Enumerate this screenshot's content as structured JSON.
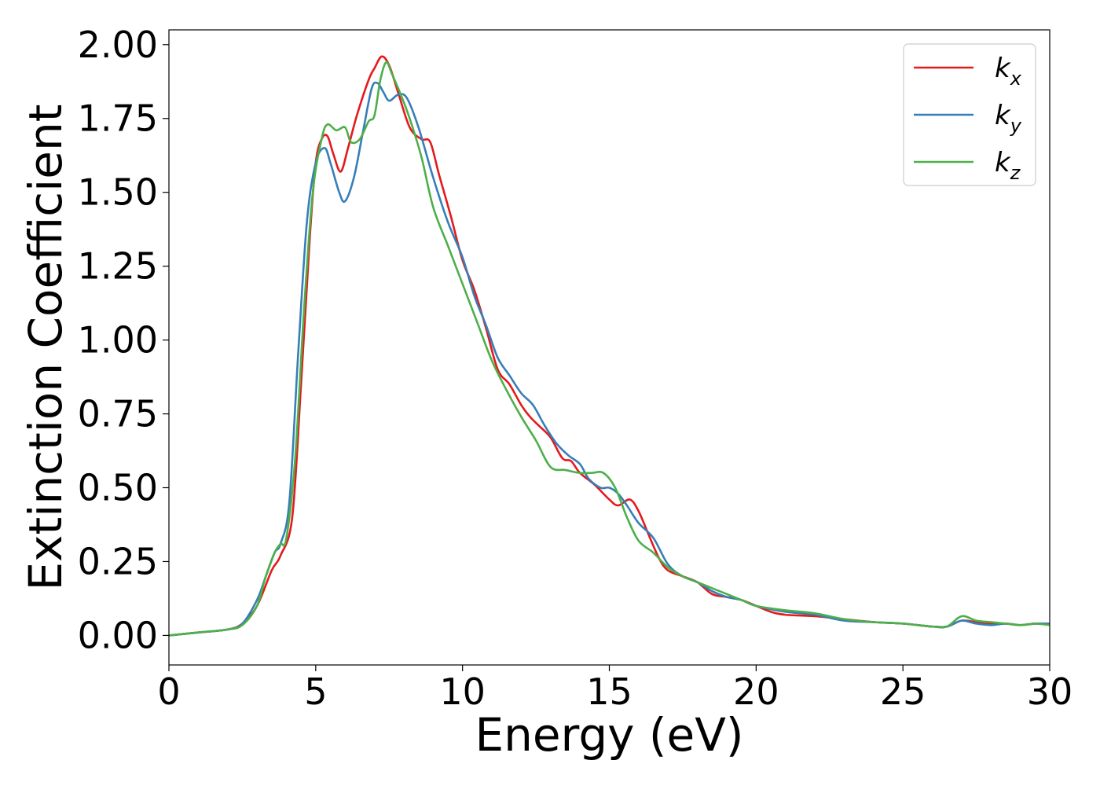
{
  "chart_data": {
    "type": "line",
    "title": "",
    "xlabel": "Energy (eV)",
    "ylabel": "Extinction Coefficient",
    "xlim": [
      0,
      30
    ],
    "ylim": [
      -0.1,
      2.05
    ],
    "xticks": [
      0,
      5,
      10,
      15,
      20,
      25,
      30
    ],
    "xtick_labels": [
      "0",
      "5",
      "10",
      "15",
      "20",
      "25",
      "30"
    ],
    "yticks": [
      0.0,
      0.25,
      0.5,
      0.75,
      1.0,
      1.25,
      1.5,
      1.75,
      2.0
    ],
    "ytick_labels": [
      "0.00",
      "0.25",
      "0.50",
      "0.75",
      "1.00",
      "1.25",
      "1.50",
      "1.75",
      "2.00"
    ],
    "grid": false,
    "legend_position": "top-right",
    "series": [
      {
        "name": "k_x",
        "label_main": "k",
        "label_sub": "x",
        "color": "#e41a1c",
        "x": [
          0,
          1,
          2,
          2.5,
          3,
          3.5,
          3.8,
          4.2,
          4.5,
          4.8,
          5.0,
          5.2,
          5.4,
          5.6,
          5.85,
          6.1,
          6.4,
          6.8,
          7.0,
          7.25,
          7.5,
          7.8,
          8.2,
          8.6,
          8.9,
          9.2,
          9.6,
          10.0,
          10.4,
          10.8,
          11.2,
          11.6,
          12.0,
          12.3,
          12.6,
          13.0,
          13.4,
          13.7,
          14.0,
          14.5,
          15.0,
          15.3,
          15.7,
          16.0,
          16.3,
          16.7,
          17.0,
          17.5,
          18.0,
          18.5,
          19.0,
          19.5,
          20.0,
          20.5,
          21.0,
          22.0,
          23.0,
          24.0,
          25.0,
          26.0,
          26.5,
          27.0,
          27.5,
          28.0,
          28.5,
          29.0,
          29.5,
          30.0
        ],
        "y": [
          0.0,
          0.01,
          0.02,
          0.04,
          0.1,
          0.22,
          0.27,
          0.4,
          0.85,
          1.35,
          1.6,
          1.68,
          1.69,
          1.63,
          1.57,
          1.65,
          1.76,
          1.88,
          1.92,
          1.96,
          1.93,
          1.84,
          1.72,
          1.68,
          1.67,
          1.56,
          1.42,
          1.27,
          1.17,
          1.04,
          0.9,
          0.85,
          0.78,
          0.74,
          0.71,
          0.67,
          0.6,
          0.59,
          0.55,
          0.51,
          0.46,
          0.44,
          0.46,
          0.42,
          0.35,
          0.26,
          0.22,
          0.2,
          0.18,
          0.14,
          0.13,
          0.12,
          0.1,
          0.08,
          0.07,
          0.065,
          0.055,
          0.045,
          0.04,
          0.03,
          0.03,
          0.05,
          0.045,
          0.04,
          0.04,
          0.035,
          0.04,
          0.04
        ]
      },
      {
        "name": "k_y",
        "label_main": "k",
        "label_sub": "y",
        "color": "#377eb8",
        "x": [
          0,
          1,
          2,
          2.5,
          3,
          3.3,
          3.6,
          3.8,
          4.1,
          4.4,
          4.7,
          5.0,
          5.3,
          5.5,
          5.8,
          6.0,
          6.3,
          6.6,
          6.9,
          7.1,
          7.3,
          7.5,
          7.8,
          8.1,
          8.5,
          9.0,
          9.5,
          10.0,
          10.4,
          10.8,
          11.2,
          11.6,
          12.0,
          12.4,
          12.8,
          13.2,
          13.6,
          14.0,
          14.3,
          14.7,
          15.0,
          15.3,
          15.6,
          16.0,
          16.5,
          17.0,
          17.5,
          18.0,
          18.5,
          19.0,
          19.5,
          20.0,
          21.0,
          22.0,
          23.0,
          24.0,
          25.0,
          26.0,
          26.5,
          27.0,
          27.5,
          28.0,
          28.5,
          29.0,
          29.5,
          30.0
        ],
        "y": [
          0.0,
          0.01,
          0.02,
          0.04,
          0.12,
          0.2,
          0.28,
          0.31,
          0.45,
          0.95,
          1.4,
          1.6,
          1.65,
          1.6,
          1.5,
          1.47,
          1.55,
          1.7,
          1.85,
          1.87,
          1.84,
          1.81,
          1.83,
          1.82,
          1.72,
          1.55,
          1.4,
          1.28,
          1.15,
          1.05,
          0.94,
          0.88,
          0.82,
          0.78,
          0.71,
          0.65,
          0.61,
          0.58,
          0.53,
          0.5,
          0.5,
          0.48,
          0.44,
          0.38,
          0.33,
          0.24,
          0.2,
          0.18,
          0.15,
          0.13,
          0.12,
          0.1,
          0.08,
          0.07,
          0.05,
          0.045,
          0.04,
          0.03,
          0.03,
          0.05,
          0.04,
          0.035,
          0.04,
          0.035,
          0.04,
          0.04
        ]
      },
      {
        "name": "k_z",
        "label_main": "k",
        "label_sub": "z",
        "color": "#4daf4a",
        "x": [
          0,
          1,
          2,
          2.5,
          3,
          3.3,
          3.6,
          3.8,
          4.0,
          4.3,
          4.6,
          4.9,
          5.2,
          5.4,
          5.7,
          6.0,
          6.2,
          6.5,
          6.8,
          7.0,
          7.2,
          7.4,
          7.6,
          7.9,
          8.2,
          8.6,
          9.0,
          9.5,
          10.0,
          10.5,
          11.0,
          11.5,
          12.0,
          12.5,
          13.0,
          13.5,
          14.0,
          14.4,
          14.8,
          15.2,
          15.6,
          16.0,
          16.5,
          17.0,
          17.5,
          18.0,
          18.5,
          19.0,
          19.5,
          20.0,
          21.0,
          22.0,
          23.0,
          24.0,
          25.0,
          26.0,
          26.5,
          27.0,
          27.5,
          28.0,
          28.5,
          29.0,
          29.5,
          30.0
        ],
        "y": [
          0.0,
          0.01,
          0.02,
          0.035,
          0.1,
          0.2,
          0.28,
          0.31,
          0.33,
          0.6,
          1.1,
          1.5,
          1.68,
          1.73,
          1.71,
          1.72,
          1.67,
          1.68,
          1.74,
          1.76,
          1.88,
          1.94,
          1.9,
          1.83,
          1.75,
          1.62,
          1.45,
          1.32,
          1.19,
          1.06,
          0.93,
          0.83,
          0.74,
          0.66,
          0.57,
          0.56,
          0.55,
          0.55,
          0.55,
          0.5,
          0.4,
          0.32,
          0.28,
          0.23,
          0.2,
          0.18,
          0.16,
          0.14,
          0.12,
          0.1,
          0.085,
          0.075,
          0.055,
          0.045,
          0.04,
          0.03,
          0.03,
          0.065,
          0.05,
          0.045,
          0.04,
          0.035,
          0.04,
          0.035
        ]
      }
    ]
  }
}
